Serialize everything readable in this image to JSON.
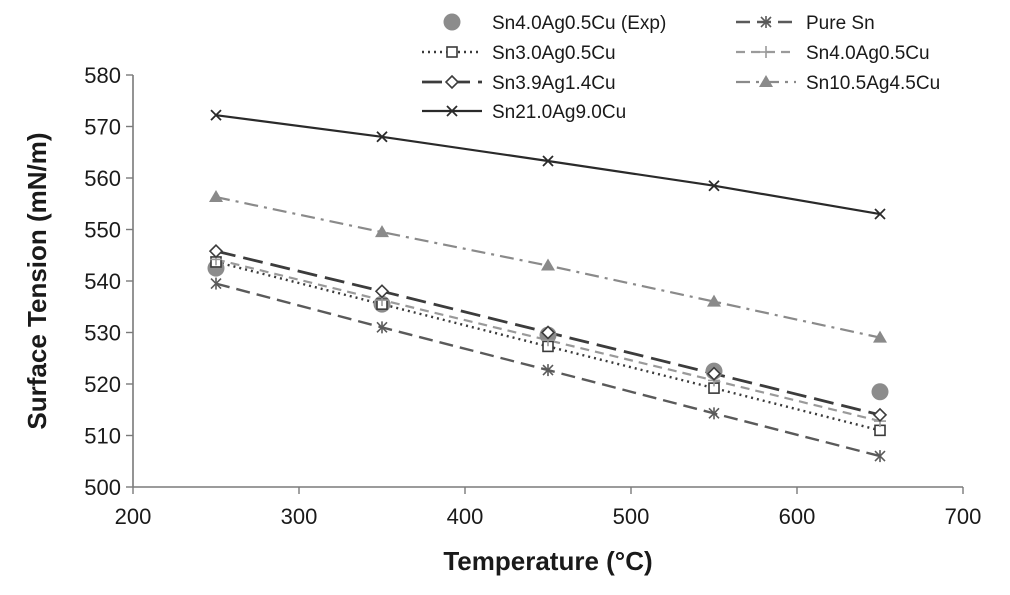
{
  "chart_data": {
    "type": "line",
    "title": "",
    "xlabel": "Temperature (°C)",
    "ylabel": "Surface Tension (mN/m)",
    "xlim": [
      200,
      700
    ],
    "ylim": [
      500,
      580
    ],
    "x_ticks": [
      "200",
      "300",
      "400",
      "500",
      "600",
      "700"
    ],
    "y_ticks": [
      "500",
      "510",
      "520",
      "530",
      "540",
      "550",
      "560",
      "570",
      "580"
    ],
    "grid": false,
    "legend_position": "top",
    "x": [
      250,
      350,
      450,
      550,
      650
    ],
    "series": [
      {
        "name": "Sn4.0Ag0.5Cu (Exp)",
        "style": "markers-only",
        "marker": "filled-circle",
        "color": "#8c8c8c",
        "values": [
          542.5,
          535.5,
          529.5,
          522.5,
          518.5
        ]
      },
      {
        "name": "Pure Sn",
        "style": "long-dash",
        "marker": "asterisk",
        "color": "#5a5a5a",
        "values": [
          539.5,
          531,
          522.7,
          514.3,
          506
        ]
      },
      {
        "name": "Sn3.0Ag0.5Cu",
        "style": "dotted",
        "marker": "open-square",
        "color": "#3a3a3a",
        "values": [
          543.7,
          535.5,
          527.3,
          519.2,
          511
        ]
      },
      {
        "name": "Sn4.0Ag0.5Cu",
        "style": "dash",
        "marker": "plus",
        "color": "#9a9a9a",
        "values": [
          544.2,
          536.3,
          528.5,
          520.7,
          512.8
        ]
      },
      {
        "name": "Sn3.9Ag1.4Cu",
        "style": "long-dash-bold",
        "marker": "open-diamond",
        "color": "#3c3c3c",
        "values": [
          545.8,
          538,
          530,
          522,
          514
        ]
      },
      {
        "name": "Sn10.5Ag4.5Cu",
        "style": "dash-dot",
        "marker": "filled-triangle",
        "color": "#8a8a8a",
        "values": [
          556.3,
          549.5,
          543,
          536,
          529
        ]
      },
      {
        "name": "Sn21.0Ag9.0Cu",
        "style": "solid",
        "marker": "x",
        "color": "#2a2a2a",
        "values": [
          572.2,
          568,
          563.3,
          558.5,
          553
        ]
      }
    ]
  },
  "legend": {
    "items": [
      {
        "series": "Sn4.0Ag0.5Cu (Exp)",
        "label": "Sn4.0Ag0.5Cu (Exp)"
      },
      {
        "series": "Pure Sn",
        "label": "Pure Sn"
      },
      {
        "series": "Sn3.0Ag0.5Cu",
        "label": "Sn3.0Ag0.5Cu"
      },
      {
        "series": "Sn4.0Ag0.5Cu",
        "label": "Sn4.0Ag0.5Cu"
      },
      {
        "series": "Sn3.9Ag1.4Cu",
        "label": "Sn3.9Ag1.4Cu"
      },
      {
        "series": "Sn10.5Ag4.5Cu",
        "label": "Sn10.5Ag4.5Cu"
      },
      {
        "series": "Sn21.0Ag9.0Cu",
        "label": "Sn21.0Ag9.0Cu"
      }
    ]
  }
}
